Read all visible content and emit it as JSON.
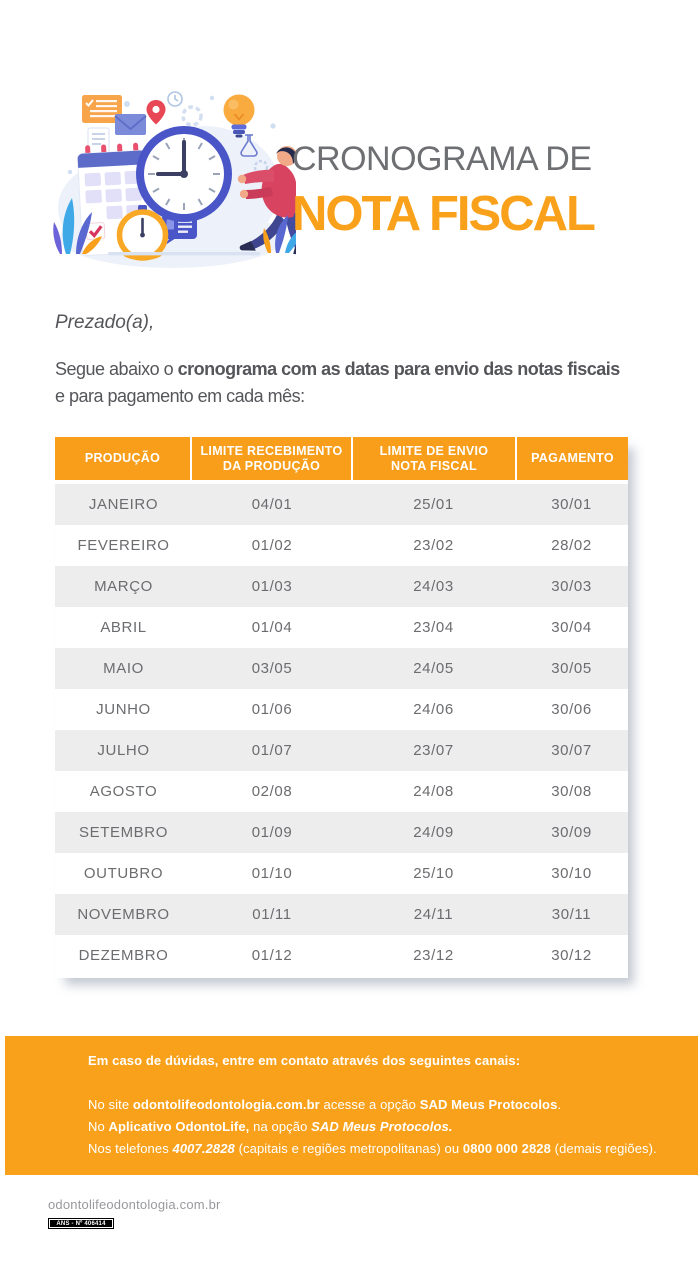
{
  "header": {
    "title_line1": "CRONOGRAMA DE",
    "title_line2": "NOTA FISCAL",
    "illustration": "person-pushing-clock-hands-with-calendar-stopwatch-lightbulb"
  },
  "greeting": "Prezado(a),",
  "intro": {
    "pre": "Segue abaixo o ",
    "bold": "cronograma com as datas para envio das notas fiscais",
    "post": "e para pagamento em cada mês:"
  },
  "table": {
    "headers": [
      [
        "PRODUÇÃO"
      ],
      [
        "LIMITE RECEBIMENTO",
        "DA PRODUÇÃO"
      ],
      [
        "LIMITE DE ENVIO",
        "NOTA FISCAL"
      ],
      [
        "PAGAMENTO"
      ]
    ],
    "rows": [
      [
        "JANEIRO",
        "04/01",
        "25/01",
        "30/01"
      ],
      [
        "FEVEREIRO",
        "01/02",
        "23/02",
        "28/02"
      ],
      [
        "MARÇO",
        "01/03",
        "24/03",
        "30/03"
      ],
      [
        "ABRIL",
        "01/04",
        "23/04",
        "30/04"
      ],
      [
        "MAIO",
        "03/05",
        "24/05",
        "30/05"
      ],
      [
        "JUNHO",
        "01/06",
        "24/06",
        "30/06"
      ],
      [
        "JULHO",
        "01/07",
        "23/07",
        "30/07"
      ],
      [
        "AGOSTO",
        "02/08",
        "24/08",
        "30/08"
      ],
      [
        "SETEMBRO",
        "01/09",
        "24/09",
        "30/09"
      ],
      [
        "OUTUBRO",
        "01/10",
        "25/10",
        "30/10"
      ],
      [
        "NOVEMBRO",
        "01/11",
        "24/11",
        "30/11"
      ],
      [
        "DEZEMBRO",
        "01/12",
        "23/12",
        "30/12"
      ]
    ]
  },
  "contact": {
    "heading": "Em caso de dúvidas, entre em contato através dos seguintes canais:",
    "lines": [
      {
        "segments": [
          {
            "text": "No site ",
            "style": "regular"
          },
          {
            "text": "odontolifeodontologia.com.br",
            "style": "bold"
          },
          {
            "text": " acesse a opção ",
            "style": "regular"
          },
          {
            "text": "SAD Meus Protocolos",
            "style": "bold"
          },
          {
            "text": ".",
            "style": "regular"
          }
        ]
      },
      {
        "segments": [
          {
            "text": "No ",
            "style": "regular"
          },
          {
            "text": "Aplicativo OdontoLife,",
            "style": "bold"
          },
          {
            "text": " na opção ",
            "style": "regular"
          },
          {
            "text": "SAD Meus Protocolos.",
            "style": "bold-italic"
          }
        ]
      },
      {
        "segments": [
          {
            "text": "Nos telefones ",
            "style": "regular"
          },
          {
            "text": "4007.2828",
            "style": "bold-italic"
          },
          {
            "text": " (capitais e regiões metropolitanas) ou ",
            "style": "regular"
          },
          {
            "text": "0800 000 2828",
            "style": "bold"
          },
          {
            "text": " (demais regiões).",
            "style": "regular"
          }
        ]
      }
    ]
  },
  "footer": {
    "website": "odontolifeodontologia.com.br",
    "ans_badge": "ANS - Nº 406414"
  },
  "colors": {
    "accent_orange": "#F89E1B",
    "title_orange": "#F9A11B",
    "title_gray": "#6E6F72",
    "body_gray": "#55565A",
    "table_row_gray": "#EDEDEE",
    "table_text_gray": "#6B6C6F",
    "footer_text_gray": "#98999D",
    "badge_black": "#000000"
  }
}
